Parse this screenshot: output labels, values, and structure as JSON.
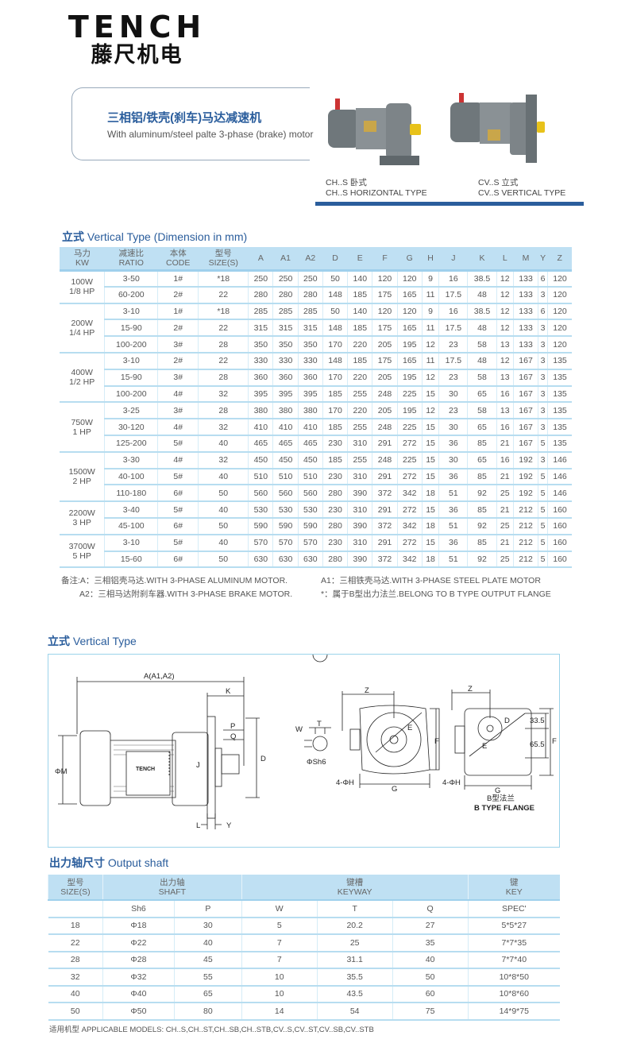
{
  "brand": {
    "logo_en": "TENCH",
    "logo_cn": "藤尺机电"
  },
  "banner": {
    "title_cn": "三相铝/铁壳(刹车)马达减速机",
    "title_en": "With aluminum/steel palte 3-phase (brake) motor",
    "horizontal_caption_cn": "CH..S 卧式",
    "horizontal_caption_en": "CH..S HORIZONTAL TYPE",
    "vertical_caption_cn": "CV..S 立式",
    "vertical_caption_en": "CV..S  VERTICAL TYPE"
  },
  "colors": {
    "accent": "#2a5d9c",
    "header_bg": "#bfe0f3",
    "motor_body": "#7d8488",
    "shaft": "#e8c21a"
  },
  "dimension_table": {
    "title_cn": "立式",
    "title_en": "Vertical Type (Dimension in mm)",
    "headers": [
      {
        "cn": "马力",
        "en": "KW"
      },
      {
        "cn": "减速比",
        "en": "RATIO"
      },
      {
        "cn": "本体",
        "en": "CODE"
      },
      {
        "cn": "型号",
        "en": "SIZE(S)"
      },
      {
        "en": "A"
      },
      {
        "en": "A1"
      },
      {
        "en": "A2"
      },
      {
        "en": "D"
      },
      {
        "en": "E"
      },
      {
        "en": "F"
      },
      {
        "en": "G"
      },
      {
        "en": "H"
      },
      {
        "en": "J"
      },
      {
        "en": "K"
      },
      {
        "en": "L"
      },
      {
        "en": "M"
      },
      {
        "en": "Y"
      },
      {
        "en": "Z"
      }
    ],
    "groups": [
      {
        "kw": "100W",
        "hp": "1/8 HP",
        "rows": [
          [
            "3-50",
            "1#",
            "*18",
            "250",
            "250",
            "250",
            "50",
            "140",
            "120",
            "120",
            "9",
            "16",
            "38.5",
            "12",
            "133",
            "6",
            "120"
          ],
          [
            "60-200",
            "2#",
            "22",
            "280",
            "280",
            "280",
            "148",
            "185",
            "175",
            "165",
            "11",
            "17.5",
            "48",
            "12",
            "133",
            "3",
            "120"
          ]
        ]
      },
      {
        "kw": "200W",
        "hp": "1/4 HP",
        "rows": [
          [
            "3-10",
            "1#",
            "*18",
            "285",
            "285",
            "285",
            "50",
            "140",
            "120",
            "120",
            "9",
            "16",
            "38.5",
            "12",
            "133",
            "6",
            "120"
          ],
          [
            "15-90",
            "2#",
            "22",
            "315",
            "315",
            "315",
            "148",
            "185",
            "175",
            "165",
            "11",
            "17.5",
            "48",
            "12",
            "133",
            "3",
            "120"
          ],
          [
            "100-200",
            "3#",
            "28",
            "350",
            "350",
            "350",
            "170",
            "220",
            "205",
            "195",
            "12",
            "23",
            "58",
            "13",
            "133",
            "3",
            "120"
          ]
        ]
      },
      {
        "kw": "400W",
        "hp": "1/2 HP",
        "rows": [
          [
            "3-10",
            "2#",
            "22",
            "330",
            "330",
            "330",
            "148",
            "185",
            "175",
            "165",
            "11",
            "17.5",
            "48",
            "12",
            "167",
            "3",
            "135"
          ],
          [
            "15-90",
            "3#",
            "28",
            "360",
            "360",
            "360",
            "170",
            "220",
            "205",
            "195",
            "12",
            "23",
            "58",
            "13",
            "167",
            "3",
            "135"
          ],
          [
            "100-200",
            "4#",
            "32",
            "395",
            "395",
            "395",
            "185",
            "255",
            "248",
            "225",
            "15",
            "30",
            "65",
            "16",
            "167",
            "3",
            "135"
          ]
        ]
      },
      {
        "kw": "750W",
        "hp": "1 HP",
        "rows": [
          [
            "3-25",
            "3#",
            "28",
            "380",
            "380",
            "380",
            "170",
            "220",
            "205",
            "195",
            "12",
            "23",
            "58",
            "13",
            "167",
            "3",
            "135"
          ],
          [
            "30-120",
            "4#",
            "32",
            "410",
            "410",
            "410",
            "185",
            "255",
            "248",
            "225",
            "15",
            "30",
            "65",
            "16",
            "167",
            "3",
            "135"
          ],
          [
            "125-200",
            "5#",
            "40",
            "465",
            "465",
            "465",
            "230",
            "310",
            "291",
            "272",
            "15",
            "36",
            "85",
            "21",
            "167",
            "5",
            "135"
          ]
        ]
      },
      {
        "kw": "1500W",
        "hp": "2 HP",
        "rows": [
          [
            "3-30",
            "4#",
            "32",
            "450",
            "450",
            "450",
            "185",
            "255",
            "248",
            "225",
            "15",
            "30",
            "65",
            "16",
            "192",
            "3",
            "146"
          ],
          [
            "40-100",
            "5#",
            "40",
            "510",
            "510",
            "510",
            "230",
            "310",
            "291",
            "272",
            "15",
            "36",
            "85",
            "21",
            "192",
            "5",
            "146"
          ],
          [
            "110-180",
            "6#",
            "50",
            "560",
            "560",
            "560",
            "280",
            "390",
            "372",
            "342",
            "18",
            "51",
            "92",
            "25",
            "192",
            "5",
            "146"
          ]
        ]
      },
      {
        "kw": "2200W",
        "hp": "3 HP",
        "rows": [
          [
            "3-40",
            "5#",
            "40",
            "530",
            "530",
            "530",
            "230",
            "310",
            "291",
            "272",
            "15",
            "36",
            "85",
            "21",
            "212",
            "5",
            "160"
          ],
          [
            "45-100",
            "6#",
            "50",
            "590",
            "590",
            "590",
            "280",
            "390",
            "372",
            "342",
            "18",
            "51",
            "92",
            "25",
            "212",
            "5",
            "160"
          ]
        ]
      },
      {
        "kw": "3700W",
        "hp": "5 HP",
        "rows": [
          [
            "3-10",
            "5#",
            "40",
            "570",
            "570",
            "570",
            "230",
            "310",
            "291",
            "272",
            "15",
            "36",
            "85",
            "21",
            "212",
            "5",
            "160"
          ],
          [
            "15-60",
            "6#",
            "50",
            "630",
            "630",
            "630",
            "280",
            "390",
            "372",
            "342",
            "18",
            "51",
            "92",
            "25",
            "212",
            "5",
            "160"
          ]
        ]
      }
    ],
    "notes": {
      "a": "备注:A：三相铝壳马达.WITH 3-PHASE ALUMINUM MOTOR.",
      "a1": "A1：三相铁壳马达.WITH 3-PHASE STEEL PLATE MOTOR",
      "a2": "A2：三相马达附刹车器.WITH 3-PHASE BRAKE MOTOR.",
      "star": "*：属于B型出力法兰.BELONG TO B TYPE OUTPUT FLANGE"
    }
  },
  "diagram": {
    "title_cn": "立式",
    "title_en": "Vertical Type",
    "labels": {
      "a": "A(A1,A2)",
      "k": "K",
      "p": "P",
      "q": "Q",
      "d": "D",
      "j": "J",
      "m": "ΦM",
      "l": "L",
      "y": "Y",
      "logo": "TENCH",
      "w": "W",
      "t": "T",
      "sh6": "ΦSh6",
      "z": "Z",
      "e": "E",
      "f": "F",
      "g": "G",
      "h": "4-ΦH",
      "v335": "33.5",
      "v655": "65.5",
      "btype_cn": "B型法兰",
      "btype_en": "B TYPE FLANGE"
    }
  },
  "shaft_table": {
    "title_cn": "出力轴尺寸",
    "title_en": "Output shaft",
    "headers": [
      {
        "cn": "型号",
        "en": "SIZE(S)"
      },
      {
        "cn": "出力轴",
        "en": "SHAFT"
      },
      {
        "cn": "键槽",
        "en": "KEYWAY"
      },
      {
        "cn": "键",
        "en": "KEY"
      }
    ],
    "subheaders": [
      "",
      "Sh6",
      "P",
      "W",
      "T",
      "Q",
      "SPEC'"
    ],
    "rows": [
      [
        "18",
        "Φ18",
        "30",
        "5",
        "20.2",
        "27",
        "5*5*27"
      ],
      [
        "22",
        "Φ22",
        "40",
        "7",
        "25",
        "35",
        "7*7*35"
      ],
      [
        "28",
        "Φ28",
        "45",
        "7",
        "31.1",
        "40",
        "7*7*40"
      ],
      [
        "32",
        "Φ32",
        "55",
        "10",
        "35.5",
        "50",
        "10*8*50"
      ],
      [
        "40",
        "Φ40",
        "65",
        "10",
        "43.5",
        "60",
        "10*8*60"
      ],
      [
        "50",
        "Φ50",
        "80",
        "14",
        "54",
        "75",
        "14*9*75"
      ]
    ],
    "footnote": "适用机型 APPLICABLE MODELS: CH..S,CH..ST,CH..SB,CH..STB,CV..S,CV..ST,CV..SB,CV..STB"
  }
}
